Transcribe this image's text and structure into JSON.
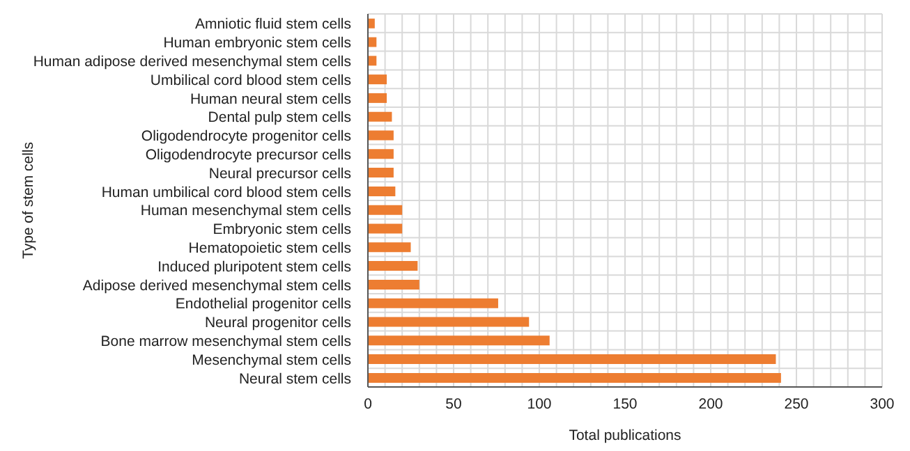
{
  "chart_data": {
    "type": "bar",
    "orientation": "horizontal",
    "xlabel": "Total publications",
    "ylabel": "Type of stem cells",
    "categories": [
      "Amniotic fluid stem cells",
      "Human embryonic stem cells",
      "Human adipose derived mesenchymal stem cells",
      "Umbilical cord blood stem cells",
      "Human neural stem cells",
      "Dental pulp stem cells",
      "Oligodendrocyte progenitor cells",
      "Oligodendrocyte precursor cells",
      "Neural precursor cells",
      "Human umbilical cord blood stem cells",
      "Human mesenchymal stem cells",
      "Embryonic stem cells",
      "Hematopoietic stem cells",
      "Induced pluripotent stem cells",
      "Adipose derived mesenchymal stem cells",
      "Endothelial progenitor cells",
      "Neural progenitor cells",
      "Bone marrow mesenchymal stem cells",
      "Mesenchymal stem cells",
      "Neural stem cells"
    ],
    "values": [
      4,
      5,
      5,
      11,
      11,
      14,
      15,
      15,
      15,
      16,
      20,
      20,
      25,
      29,
      30,
      76,
      94,
      106,
      238,
      241
    ],
    "color": "#ed7d31",
    "xlim": [
      0,
      300
    ],
    "xticks": [
      0,
      {
        "value": 10,
        "label": null
      },
      {
        "value": 20,
        "label": null
      },
      {
        "value": 30,
        "label": null
      },
      {
        "value": 40,
        "label": null
      },
      50,
      {
        "value": 60,
        "label": null
      },
      {
        "value": 70,
        "label": null
      },
      {
        "value": 80,
        "label": null
      },
      {
        "value": 90,
        "label": null
      },
      100,
      {
        "value": 110,
        "label": null
      },
      {
        "value": 120,
        "label": null
      },
      {
        "value": 130,
        "label": null
      },
      {
        "value": 140,
        "label": null
      },
      150,
      {
        "value": 160,
        "label": null
      },
      {
        "value": 170,
        "label": null
      },
      {
        "value": 180,
        "label": null
      },
      {
        "value": 190,
        "label": null
      },
      200,
      {
        "value": 210,
        "label": null
      },
      {
        "value": 220,
        "label": null
      },
      {
        "value": 230,
        "label": null
      },
      {
        "value": 240,
        "label": null
      },
      250,
      {
        "value": 260,
        "label": null
      },
      {
        "value": 270,
        "label": null
      },
      {
        "value": 280,
        "label": null
      },
      {
        "value": 290,
        "label": null
      },
      300
    ],
    "grid": true,
    "legend": false
  }
}
